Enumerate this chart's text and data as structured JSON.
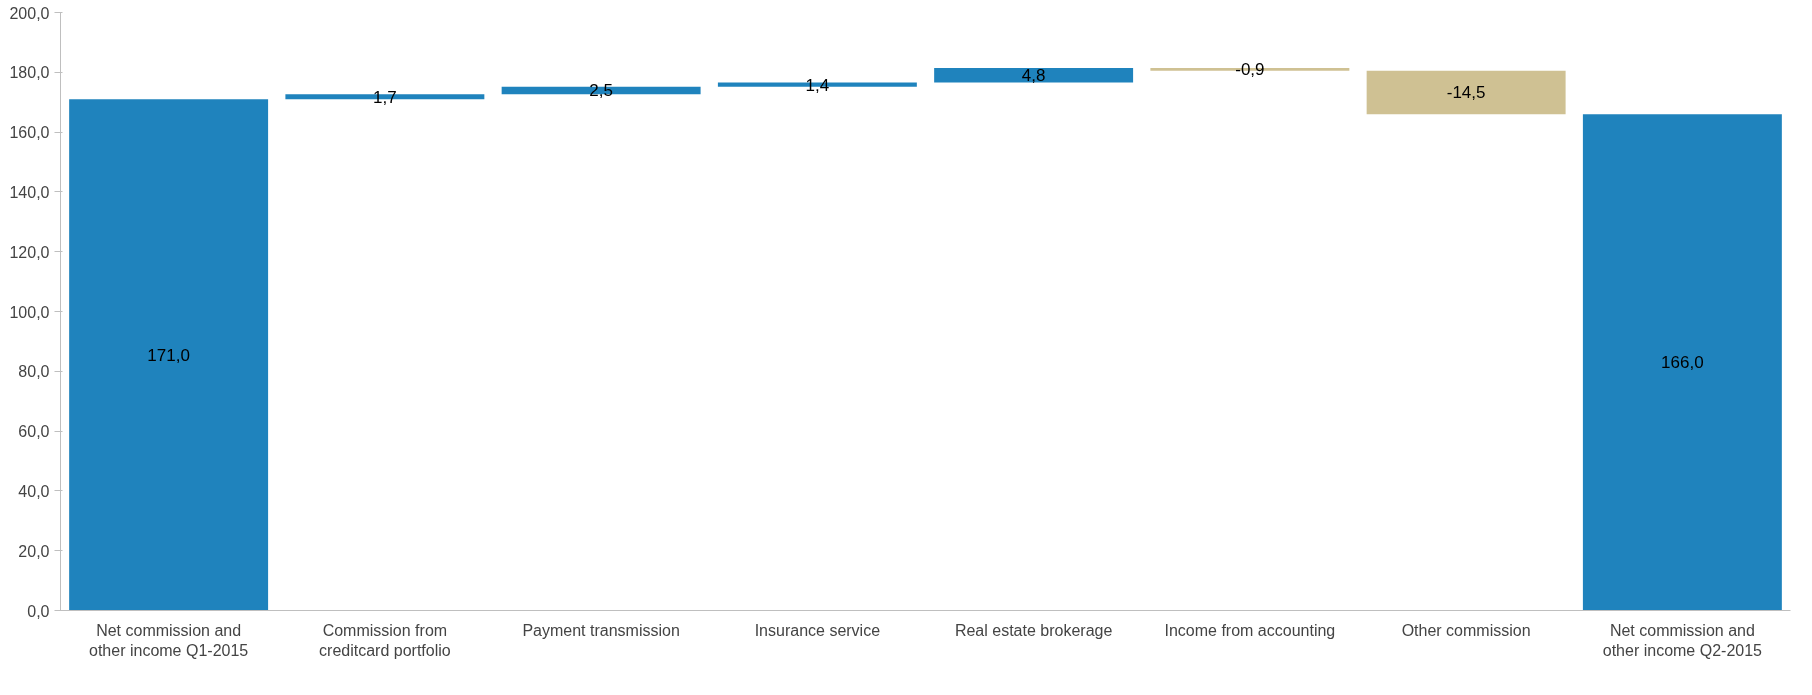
{
  "chart_data": {
    "type": "bar",
    "categories": [
      "Net commission and other income Q1-2015",
      "Commission from creditcard portfolio",
      "Payment transmission",
      "Insurance service",
      "Real estate brokerage",
      "Income from accounting",
      "Other commission",
      "Net commission and other income Q2-2015"
    ],
    "values": [
      171.0,
      1.7,
      2.5,
      1.4,
      4.8,
      -0.9,
      -14.5,
      166.0
    ],
    "base": [
      0,
      171.0,
      172.7,
      175.2,
      176.6,
      181.4,
      180.5,
      0
    ],
    "colors": [
      "#1f83bd",
      "#1f83bd",
      "#1f83bd",
      "#1f83bd",
      "#1f83bd",
      "#cfc193",
      "#cfc193",
      "#1f83bd"
    ],
    "value_labels": [
      "171,0",
      "1,7",
      "2,5",
      "1,4",
      "4,8",
      "-0,9",
      "-14,5",
      "166,0"
    ],
    "ylim": [
      0,
      200
    ],
    "yticks": [
      {
        "value": 0,
        "label": "0,0"
      },
      {
        "value": 20,
        "label": "20,0"
      },
      {
        "value": 40,
        "label": "40,0"
      },
      {
        "value": 60,
        "label": "60,0"
      },
      {
        "value": 80,
        "label": "80,0"
      },
      {
        "value": 100,
        "label": "100,0"
      },
      {
        "value": 120,
        "label": "120,0"
      },
      {
        "value": 140,
        "label": "140,0"
      },
      {
        "value": 160,
        "label": "160,0"
      },
      {
        "value": 180,
        "label": "180,0"
      },
      {
        "value": 200,
        "label": "200,0"
      }
    ],
    "grid": false
  }
}
